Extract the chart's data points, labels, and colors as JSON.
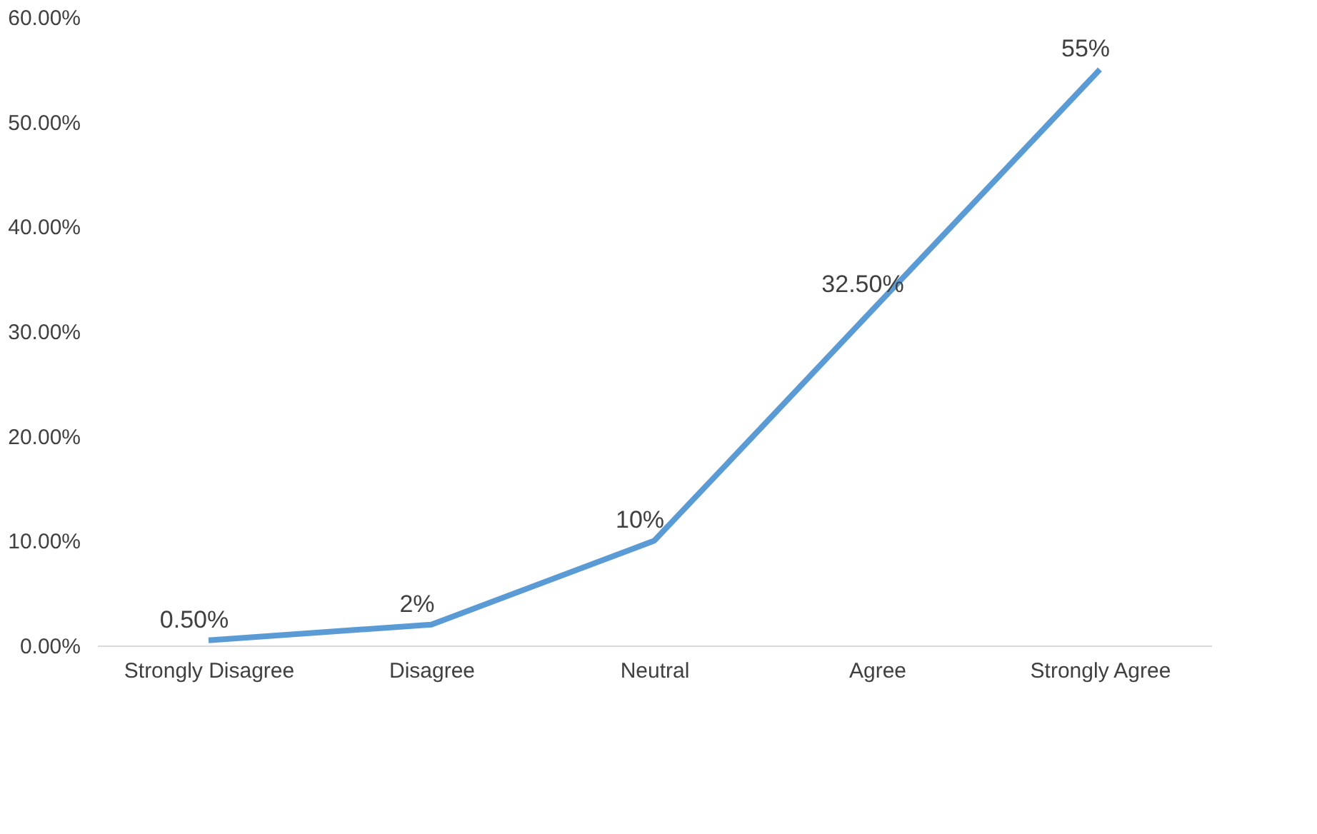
{
  "chart_data": {
    "type": "line",
    "categories": [
      "Strongly Disagree",
      "Disagree",
      "Neutral",
      "Agree",
      "Strongly  Agree"
    ],
    "series": [
      {
        "color": "#5b9bd5",
        "values": [
          0.5,
          2,
          10,
          32.5,
          55
        ],
        "value_labels": [
          "0.50%",
          "2%",
          "10%",
          "32.50%",
          "55%"
        ]
      }
    ],
    "ylim": [
      0,
      60
    ],
    "yticks": [
      {
        "value": 0,
        "label": "0.00%"
      },
      {
        "value": 10,
        "label": "10.00%"
      },
      {
        "value": 20,
        "label": "20.00%"
      },
      {
        "value": 30,
        "label": "30.00%"
      },
      {
        "value": 40,
        "label": "40.00%"
      },
      {
        "value": 50,
        "label": "50.00%"
      },
      {
        "value": 60,
        "label": "60.00%"
      }
    ],
    "grid": false,
    "marker": "none",
    "line_style": "solid"
  }
}
